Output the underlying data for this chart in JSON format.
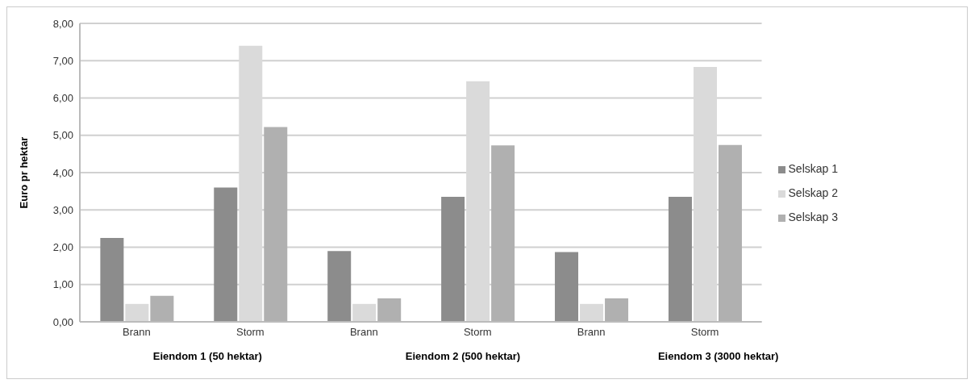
{
  "chart_data": {
    "type": "bar",
    "ylabel": "Euro pr hektar",
    "categories": [
      "Brann",
      "Storm",
      "Brann",
      "Storm",
      "Brann",
      "Storm"
    ],
    "annotations": [
      "Eiendom 1 (50 hektar)",
      "Eiendom 2 (500 hektar)",
      "Eiendom 3 (3000 hektar)"
    ],
    "series": [
      {
        "name": "Selskap 1",
        "color": "#8c8c8c",
        "values": [
          2.25,
          3.6,
          1.9,
          3.35,
          1.87,
          3.35
        ]
      },
      {
        "name": "Selskap 2",
        "color": "#dadada",
        "values": [
          0.48,
          7.4,
          0.48,
          6.45,
          0.48,
          6.83
        ]
      },
      {
        "name": "Selskap 3",
        "color": "#b0b0b0",
        "values": [
          0.7,
          5.22,
          0.63,
          4.73,
          0.63,
          4.74
        ]
      }
    ],
    "ylim": [
      0,
      8
    ],
    "yticks": [
      {
        "value": 0,
        "label": "0,00"
      },
      {
        "value": 1,
        "label": "1,00"
      },
      {
        "value": 2,
        "label": "2,00"
      },
      {
        "value": 3,
        "label": "3,00"
      },
      {
        "value": 4,
        "label": "4,00"
      },
      {
        "value": 5,
        "label": "5,00"
      },
      {
        "value": 6,
        "label": "6,00"
      },
      {
        "value": 7,
        "label": "7,00"
      },
      {
        "value": 8,
        "label": "8,00"
      }
    ],
    "grid": "y",
    "legend": "right"
  }
}
